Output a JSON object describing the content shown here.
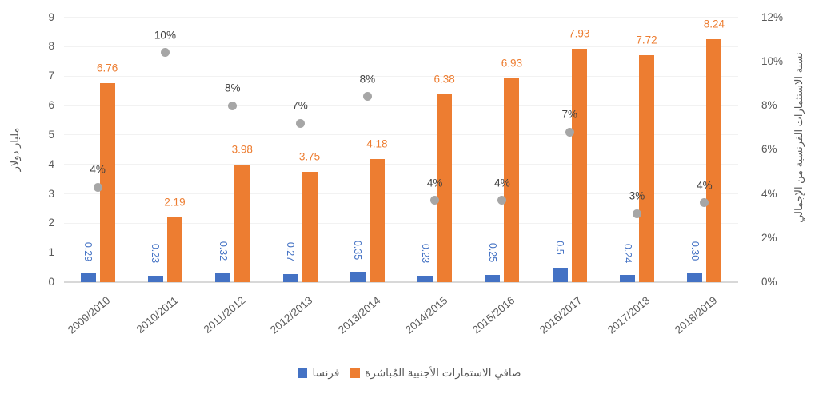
{
  "chart_data": {
    "type": "combo",
    "subtypes": [
      "bar",
      "bar",
      "scatter"
    ],
    "title": "",
    "categories": [
      "2009/2010",
      "2010/2011",
      "2011/2012",
      "2012/2013",
      "2013/2014",
      "2014/2015",
      "2015/2016",
      "2016/2017",
      "2017/2018",
      "2018/2019"
    ],
    "series": [
      {
        "name": "فرنسا",
        "type": "bar",
        "axis": "left",
        "color": "#4472c4",
        "values": [
          0.29,
          0.23,
          0.32,
          0.27,
          0.35,
          0.23,
          0.25,
          0.5,
          0.24,
          0.3
        ],
        "labels": [
          "0.29",
          "0.23",
          "0.32",
          "0.27",
          "0.35",
          "0.23",
          "0.25",
          "0.5",
          "0.24",
          "0.30"
        ]
      },
      {
        "name": "صافي الاستمارات الأجنبية المُباشرة",
        "type": "bar",
        "axis": "left",
        "color": "#ed7d31",
        "values": [
          6.76,
          2.19,
          3.98,
          3.75,
          4.18,
          6.38,
          6.93,
          7.93,
          7.72,
          8.24
        ],
        "labels": [
          "6.76",
          "2.19",
          "3.98",
          "3.75",
          "4.18",
          "6.38",
          "6.93",
          "7.93",
          "7.72",
          "8.24"
        ]
      },
      {
        "name": "نسبة الاستثمارات الفرنسية من الإجمالي",
        "type": "scatter",
        "axis": "right",
        "color": "#a6a6a6",
        "values": [
          4.3,
          10.4,
          8.0,
          7.2,
          8.4,
          3.7,
          3.7,
          6.8,
          3.1,
          3.6
        ],
        "labels": [
          "4%",
          "10%",
          "8%",
          "7%",
          "8%",
          "4%",
          "4%",
          "7%",
          "3%",
          "4%"
        ]
      }
    ],
    "left_axis": {
      "title": "مليار دولار",
      "min": 0,
      "max": 9,
      "step": 1,
      "ticks": [
        "0",
        "1",
        "2",
        "3",
        "4",
        "5",
        "6",
        "7",
        "8",
        "9"
      ]
    },
    "right_axis": {
      "title": "نسبة الاستثمارات الفرنسية من الإجمالي",
      "min": 0,
      "max": 12,
      "step": 2,
      "ticks": [
        "0%",
        "2%",
        "4%",
        "6%",
        "8%",
        "10%",
        "12%"
      ]
    },
    "legend": [
      {
        "label": "فرنسا",
        "color": "#4472c4"
      },
      {
        "label": "صافي الاستمارات الأجنبية المُباشرة",
        "color": "#ed7d31"
      }
    ],
    "legend_position": "bottom-center",
    "grid": "faint-horizontal",
    "colors": {
      "bar_blue": "#4472c4",
      "bar_orange": "#ed7d31",
      "dot_gray": "#a6a6a6",
      "pct_text": "#404040",
      "axis_text": "#595959",
      "baseline": "#d8d8d8"
    }
  }
}
